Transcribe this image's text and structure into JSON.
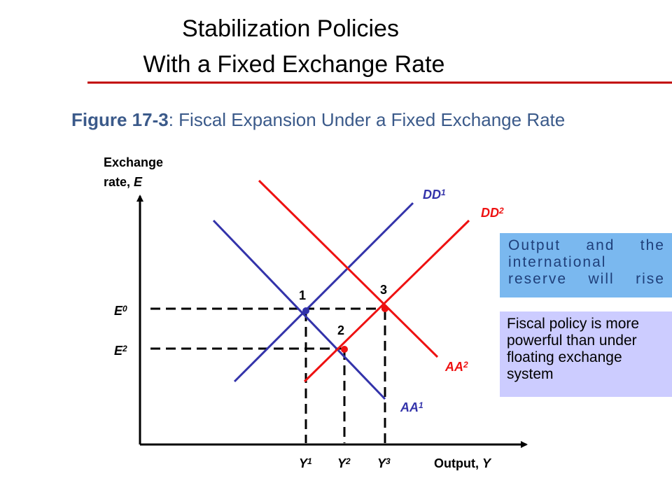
{
  "header": {
    "title_lines": [
      "Stabilization Policies",
      "With a Fixed Exchange Rate"
    ]
  },
  "figure": {
    "number": "Figure 17-3",
    "caption": ": Fiscal Expansion Under a Fixed Exchange Rate"
  },
  "diagram": {
    "y_axis_label": {
      "line1": "Exchange",
      "line2": "rate, ",
      "var": "E"
    },
    "x_axis_label": {
      "text": "Output, ",
      "var": "Y"
    },
    "curves": [
      {
        "main": "DD",
        "sub": "1"
      },
      {
        "main": "DD",
        "sub": "2"
      },
      {
        "main": "AA",
        "sub": "1"
      },
      {
        "main": "AA",
        "sub": "2"
      }
    ],
    "levels": [
      {
        "main": "E",
        "sub": "0"
      },
      {
        "main": "E",
        "sub": "2"
      }
    ],
    "outputs": [
      {
        "main": "Y",
        "sub": "1"
      },
      {
        "main": "Y",
        "sub": "2"
      },
      {
        "main": "Y",
        "sub": "3"
      }
    ],
    "points": [
      "1",
      "2",
      "3"
    ]
  },
  "notes": [
    "Output and the international reserve will rise",
    "Fiscal policy is more powerful than under floating exchange system"
  ]
}
